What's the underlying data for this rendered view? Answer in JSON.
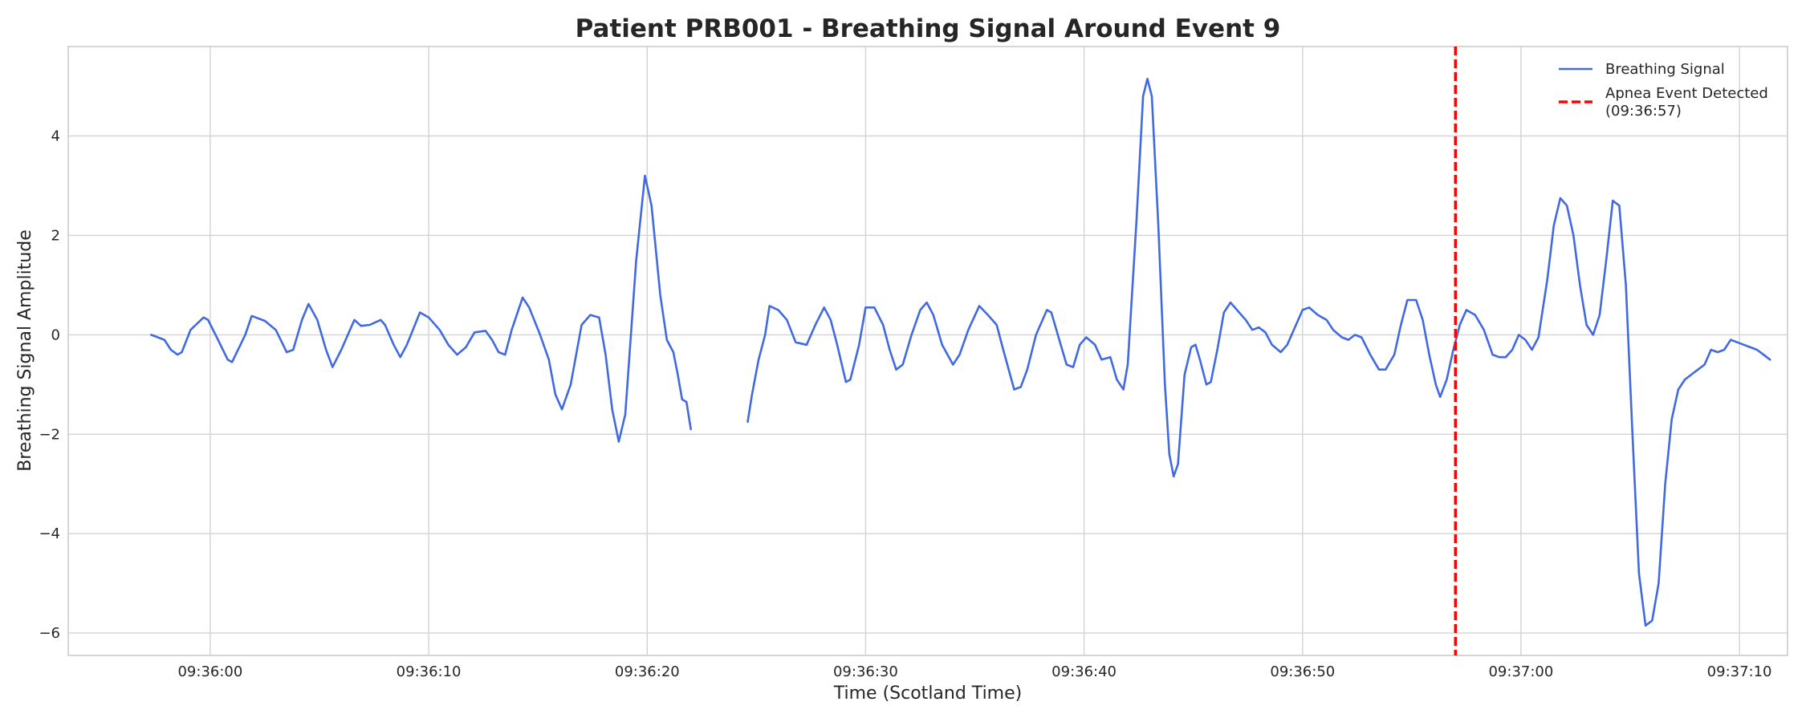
{
  "chart_data": {
    "type": "line",
    "title": "Patient PRB001 - Breathing Signal Around Event 9",
    "xlabel": "Time (Scotland Time)",
    "ylabel": "Breathing Signal Amplitude",
    "x_unit": "time of day (HH:MM:SS)",
    "xlim": [
      "09:35:53.5",
      "09:37:12.2"
    ],
    "ylim": [
      -6.45,
      5.8
    ],
    "grid": true,
    "legend_position": "top-right",
    "x_ticks": [
      "09:36:00",
      "09:36:10",
      "09:36:20",
      "09:36:30",
      "09:36:40",
      "09:36:50",
      "09:37:00",
      "09:37:10"
    ],
    "y_ticks": [
      -6,
      -4,
      -2,
      0,
      2,
      4
    ],
    "series": [
      {
        "name": "Breathing Signal",
        "color": "#4169e1",
        "segments": [
          [
            [
              "09:35:57.3",
              0.0
            ],
            [
              "09:35:57.9",
              -0.1
            ],
            [
              "09:35:58.2",
              -0.3
            ],
            [
              "09:35:58.5",
              -0.4
            ],
            [
              "09:35:58.7",
              -0.35
            ],
            [
              "09:35:59.1",
              0.1
            ],
            [
              "09:35:59.7",
              0.35
            ],
            [
              "09:35:59.9",
              0.3
            ],
            [
              "09:36:00.3",
              -0.05
            ],
            [
              "09:36:00.8",
              -0.5
            ],
            [
              "09:36:01.0",
              -0.55
            ],
            [
              "09:36:01.6",
              0.0
            ],
            [
              "09:36:01.9",
              0.38
            ],
            [
              "09:36:02.5",
              0.28
            ],
            [
              "09:36:03.0",
              0.1
            ],
            [
              "09:36:03.5",
              -0.35
            ],
            [
              "09:36:03.8",
              -0.3
            ],
            [
              "09:36:04.2",
              0.3
            ],
            [
              "09:36:04.5",
              0.62
            ],
            [
              "09:36:04.9",
              0.3
            ],
            [
              "09:36:05.3",
              -0.3
            ],
            [
              "09:36:05.6",
              -0.65
            ],
            [
              "09:36:06.0",
              -0.3
            ],
            [
              "09:36:06.6",
              0.3
            ],
            [
              "09:36:06.9",
              0.18
            ],
            [
              "09:36:07.3",
              0.2
            ],
            [
              "09:36:07.8",
              0.3
            ],
            [
              "09:36:08.0",
              0.2
            ],
            [
              "09:36:08.4",
              -0.2
            ],
            [
              "09:36:08.7",
              -0.45
            ],
            [
              "09:36:09.0",
              -0.2
            ],
            [
              "09:36:09.6",
              0.45
            ],
            [
              "09:36:10.0",
              0.35
            ],
            [
              "09:36:10.5",
              0.1
            ],
            [
              "09:36:10.9",
              -0.2
            ],
            [
              "09:36:11.3",
              -0.4
            ],
            [
              "09:36:11.7",
              -0.25
            ],
            [
              "09:36:12.1",
              0.05
            ],
            [
              "09:36:12.6",
              0.08
            ],
            [
              "09:36:12.9",
              -0.1
            ],
            [
              "09:36:13.2",
              -0.35
            ],
            [
              "09:36:13.5",
              -0.4
            ],
            [
              "09:36:13.8",
              0.1
            ],
            [
              "09:36:14.3",
              0.75
            ],
            [
              "09:36:14.6",
              0.55
            ],
            [
              "09:36:15.1",
              0.0
            ],
            [
              "09:36:15.5",
              -0.5
            ],
            [
              "09:36:15.8",
              -1.2
            ],
            [
              "09:36:16.1",
              -1.5
            ],
            [
              "09:36:16.5",
              -1.0
            ],
            [
              "09:36:17.0",
              0.2
            ],
            [
              "09:36:17.4",
              0.4
            ],
            [
              "09:36:17.8",
              0.35
            ],
            [
              "09:36:18.1",
              -0.4
            ],
            [
              "09:36:18.4",
              -1.5
            ],
            [
              "09:36:18.7",
              -2.15
            ],
            [
              "09:36:19.0",
              -1.6
            ],
            [
              "09:36:19.5",
              1.5
            ],
            [
              "09:36:19.9",
              3.2
            ],
            [
              "09:36:20.2",
              2.6
            ],
            [
              "09:36:20.6",
              0.8
            ],
            [
              "09:36:20.9",
              -0.1
            ],
            [
              "09:36:21.2",
              -0.35
            ],
            [
              "09:36:21.4",
              -0.8
            ],
            [
              "09:36:21.6",
              -1.3
            ],
            [
              "09:36:21.8",
              -1.35
            ],
            [
              "09:36:22.0",
              -1.9
            ]
          ],
          [
            [
              "09:36:24.6",
              -1.75
            ],
            [
              "09:36:24.8",
              -1.2
            ],
            [
              "09:36:25.1",
              -0.5
            ],
            [
              "09:36:25.4",
              0.0
            ],
            [
              "09:36:25.6",
              0.58
            ],
            [
              "09:36:26.0",
              0.5
            ],
            [
              "09:36:26.4",
              0.3
            ],
            [
              "09:36:26.8",
              -0.15
            ],
            [
              "09:36:27.3",
              -0.2
            ],
            [
              "09:36:27.7",
              0.2
            ],
            [
              "09:36:28.1",
              0.55
            ],
            [
              "09:36:28.4",
              0.3
            ],
            [
              "09:36:28.7",
              -0.2
            ],
            [
              "09:36:29.1",
              -0.95
            ],
            [
              "09:36:29.3",
              -0.9
            ],
            [
              "09:36:29.7",
              -0.2
            ],
            [
              "09:36:30.0",
              0.55
            ],
            [
              "09:36:30.4",
              0.55
            ],
            [
              "09:36:30.8",
              0.2
            ],
            [
              "09:36:31.1",
              -0.3
            ],
            [
              "09:36:31.4",
              -0.7
            ],
            [
              "09:36:31.7",
              -0.6
            ],
            [
              "09:36:32.1",
              0.0
            ],
            [
              "09:36:32.5",
              0.5
            ],
            [
              "09:36:32.8",
              0.65
            ],
            [
              "09:36:33.1",
              0.4
            ],
            [
              "09:36:33.5",
              -0.2
            ],
            [
              "09:36:34.0",
              -0.6
            ],
            [
              "09:36:34.3",
              -0.4
            ],
            [
              "09:36:34.7",
              0.1
            ],
            [
              "09:36:35.2",
              0.58
            ],
            [
              "09:36:35.6",
              0.4
            ],
            [
              "09:36:36.0",
              0.2
            ],
            [
              "09:36:36.3",
              -0.3
            ],
            [
              "09:36:36.8",
              -1.1
            ],
            [
              "09:36:37.1",
              -1.05
            ],
            [
              "09:36:37.4",
              -0.7
            ],
            [
              "09:36:37.8",
              0.0
            ],
            [
              "09:36:38.3",
              0.5
            ],
            [
              "09:36:38.5",
              0.45
            ],
            [
              "09:36:38.8",
              0.0
            ],
            [
              "09:36:39.2",
              -0.6
            ],
            [
              "09:36:39.5",
              -0.65
            ],
            [
              "09:36:39.8",
              -0.2
            ],
            [
              "09:36:40.1",
              -0.05
            ],
            [
              "09:36:40.5",
              -0.2
            ],
            [
              "09:36:40.8",
              -0.5
            ],
            [
              "09:36:41.2",
              -0.45
            ],
            [
              "09:36:41.5",
              -0.9
            ],
            [
              "09:36:41.8",
              -1.1
            ],
            [
              "09:36:42.0",
              -0.6
            ],
            [
              "09:36:42.4",
              2.3
            ],
            [
              "09:36:42.7",
              4.8
            ],
            [
              "09:36:42.9",
              5.15
            ],
            [
              "09:36:43.1",
              4.8
            ],
            [
              "09:36:43.4",
              2.2
            ],
            [
              "09:36:43.7",
              -1.0
            ],
            [
              "09:36:43.9",
              -2.4
            ],
            [
              "09:36:44.1",
              -2.85
            ],
            [
              "09:36:44.3",
              -2.6
            ],
            [
              "09:36:44.6",
              -0.8
            ],
            [
              "09:36:44.9",
              -0.25
            ],
            [
              "09:36:45.1",
              -0.2
            ],
            [
              "09:36:45.3",
              -0.5
            ],
            [
              "09:36:45.6",
              -1.0
            ],
            [
              "09:36:45.8",
              -0.95
            ],
            [
              "09:36:46.1",
              -0.3
            ],
            [
              "09:36:46.4",
              0.45
            ],
            [
              "09:36:46.7",
              0.65
            ],
            [
              "09:36:47.1",
              0.45
            ],
            [
              "09:36:47.4",
              0.3
            ],
            [
              "09:36:47.7",
              0.1
            ],
            [
              "09:36:48.0",
              0.15
            ],
            [
              "09:36:48.3",
              0.05
            ],
            [
              "09:36:48.6",
              -0.2
            ],
            [
              "09:36:49.0",
              -0.35
            ],
            [
              "09:36:49.3",
              -0.2
            ],
            [
              "09:36:49.7",
              0.2
            ],
            [
              "09:36:50.0",
              0.5
            ],
            [
              "09:36:50.3",
              0.55
            ],
            [
              "09:36:50.7",
              0.4
            ],
            [
              "09:36:51.1",
              0.3
            ],
            [
              "09:36:51.4",
              0.1
            ],
            [
              "09:36:51.8",
              -0.05
            ],
            [
              "09:36:52.1",
              -0.1
            ],
            [
              "09:36:52.4",
              0.0
            ],
            [
              "09:36:52.7",
              -0.05
            ],
            [
              "09:36:53.1",
              -0.4
            ],
            [
              "09:36:53.5",
              -0.7
            ],
            [
              "09:36:53.8",
              -0.7
            ],
            [
              "09:36:54.2",
              -0.4
            ],
            [
              "09:36:54.5",
              0.2
            ],
            [
              "09:36:54.8",
              0.7
            ],
            [
              "09:36:55.2",
              0.7
            ],
            [
              "09:36:55.5",
              0.3
            ],
            [
              "09:36:55.8",
              -0.4
            ],
            [
              "09:36:56.1",
              -1.0
            ],
            [
              "09:36:56.3",
              -1.25
            ],
            [
              "09:36:56.6",
              -0.9
            ],
            [
              "09:36:56.9",
              -0.3
            ],
            [
              "09:36:57.2",
              0.2
            ],
            [
              "09:36:57.5",
              0.5
            ],
            [
              "09:36:57.9",
              0.4
            ],
            [
              "09:36:58.3",
              0.1
            ],
            [
              "09:36:58.7",
              -0.4
            ],
            [
              "09:36:59.0",
              -0.45
            ],
            [
              "09:36:59.3",
              -0.45
            ],
            [
              "09:36:59.6",
              -0.3
            ],
            [
              "09:36:59.9",
              0.0
            ],
            [
              "09:37:00.2",
              -0.1
            ],
            [
              "09:37:00.5",
              -0.3
            ],
            [
              "09:37:00.8",
              -0.05
            ],
            [
              "09:37:01.2",
              1.1
            ],
            [
              "09:37:01.5",
              2.2
            ],
            [
              "09:37:01.8",
              2.75
            ],
            [
              "09:37:02.1",
              2.6
            ],
            [
              "09:37:02.4",
              2.0
            ],
            [
              "09:37:02.7",
              1.0
            ],
            [
              "09:37:03.0",
              0.2
            ],
            [
              "09:37:03.3",
              0.0
            ],
            [
              "09:37:03.6",
              0.4
            ],
            [
              "09:37:03.9",
              1.5
            ],
            [
              "09:37:04.2",
              2.7
            ],
            [
              "09:37:04.5",
              2.6
            ],
            [
              "09:37:04.8",
              1.0
            ],
            [
              "09:37:05.1",
              -2.0
            ],
            [
              "09:37:05.4",
              -4.8
            ],
            [
              "09:37:05.7",
              -5.85
            ],
            [
              "09:37:06.0",
              -5.75
            ],
            [
              "09:37:06.3",
              -5.0
            ],
            [
              "09:37:06.6",
              -3.0
            ],
            [
              "09:37:06.9",
              -1.7
            ],
            [
              "09:37:07.2",
              -1.1
            ],
            [
              "09:37:07.5",
              -0.9
            ],
            [
              "09:37:07.8",
              -0.8
            ],
            [
              "09:37:08.1",
              -0.7
            ],
            [
              "09:37:08.4",
              -0.6
            ],
            [
              "09:37:08.7",
              -0.3
            ],
            [
              "09:37:09.0",
              -0.35
            ],
            [
              "09:37:09.3",
              -0.3
            ],
            [
              "09:37:09.6",
              -0.1
            ],
            [
              "09:37:09.9",
              -0.15
            ],
            [
              "09:37:10.2",
              -0.2
            ],
            [
              "09:37:10.5",
              -0.25
            ],
            [
              "09:37:10.8",
              -0.3
            ],
            [
              "09:37:11.1",
              -0.4
            ],
            [
              "09:37:11.4",
              -0.5
            ]
          ]
        ]
      }
    ],
    "annotations": [
      {
        "type": "vline",
        "x": "09:36:57",
        "color": "#ff0000",
        "style": "dashed",
        "label_line1": "Apnea Event Detected",
        "label_line2": "(09:36:57)"
      }
    ],
    "legend": [
      {
        "label": "Breathing Signal",
        "color": "#4169e1",
        "style": "solid"
      },
      {
        "label": "Apnea Event Detected",
        "label_line2": "(09:36:57)",
        "color": "#ff0000",
        "style": "dashed"
      }
    ]
  }
}
